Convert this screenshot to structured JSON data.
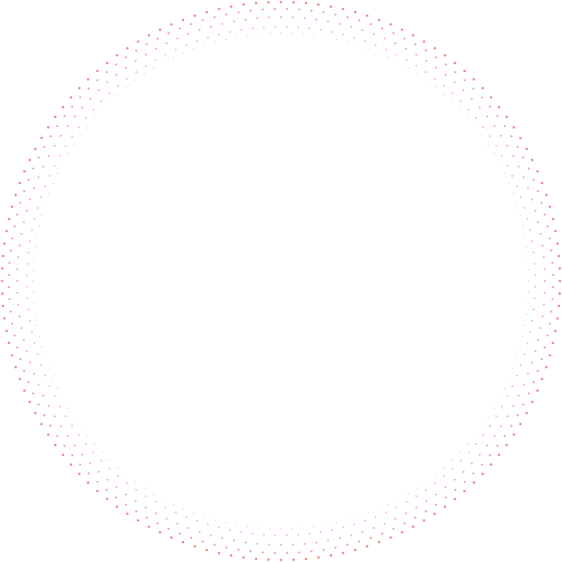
{
  "decoration": {
    "description_type": "dotted-ring",
    "dot_color": "#e8746f",
    "ring_count": 5
  }
}
